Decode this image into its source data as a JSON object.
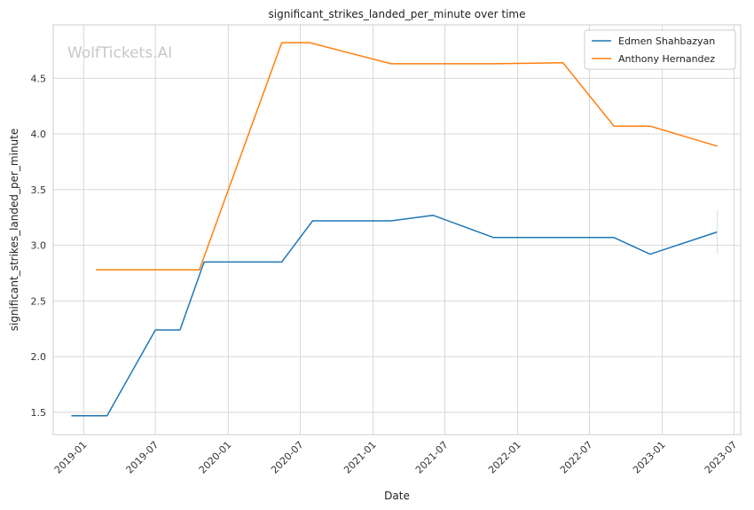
{
  "chart_data": {
    "type": "line",
    "title": "significant_strikes_landed_per_minute over time",
    "xlabel": "Date",
    "ylabel": "significant_strikes_landed_per_minute",
    "watermark": "WolfTickets.AI",
    "x_ticks": [
      "2019-01",
      "2019-07",
      "2020-01",
      "2020-07",
      "2021-01",
      "2021-07",
      "2022-01",
      "2022-07",
      "2023-01",
      "2023-07"
    ],
    "y_ticks": [
      "1.5",
      "2.0",
      "2.5",
      "3.0",
      "3.5",
      "4.0",
      "4.5"
    ],
    "xlim": [
      "2018-10-16",
      "2023-07-18"
    ],
    "ylim": [
      1.3,
      4.98
    ],
    "grid": true,
    "legend_position": "top-right",
    "series": [
      {
        "name": "Edmen Shahbazyan",
        "color": "#1f77b4",
        "points": [
          {
            "x": "2018-12-01",
            "y": 1.47
          },
          {
            "x": "2019-03-01",
            "y": 1.47
          },
          {
            "x": "2019-07-01",
            "y": 2.24
          },
          {
            "x": "2019-09-01",
            "y": 2.24
          },
          {
            "x": "2019-11-01",
            "y": 2.85
          },
          {
            "x": "2020-05-15",
            "y": 2.85
          },
          {
            "x": "2020-08-01",
            "y": 3.22
          },
          {
            "x": "2021-02-15",
            "y": 3.22
          },
          {
            "x": "2021-06-01",
            "y": 3.27
          },
          {
            "x": "2021-11-01",
            "y": 3.07
          },
          {
            "x": "2022-09-01",
            "y": 3.07
          },
          {
            "x": "2022-12-01",
            "y": 2.92
          },
          {
            "x": "2023-05-20",
            "y": 3.12
          }
        ]
      },
      {
        "name": "Anthony Hernandez",
        "color": "#ff7f0e",
        "points": [
          {
            "x": "2019-02-01",
            "y": 2.78
          },
          {
            "x": "2019-10-20",
            "y": 2.78
          },
          {
            "x": "2020-05-15",
            "y": 4.82
          },
          {
            "x": "2020-07-25",
            "y": 4.82
          },
          {
            "x": "2021-02-15",
            "y": 4.63
          },
          {
            "x": "2021-11-01",
            "y": 4.63
          },
          {
            "x": "2022-04-25",
            "y": 4.64
          },
          {
            "x": "2022-09-01",
            "y": 4.07
          },
          {
            "x": "2022-12-01",
            "y": 4.07
          },
          {
            "x": "2023-05-20",
            "y": 3.89
          }
        ]
      }
    ]
  }
}
